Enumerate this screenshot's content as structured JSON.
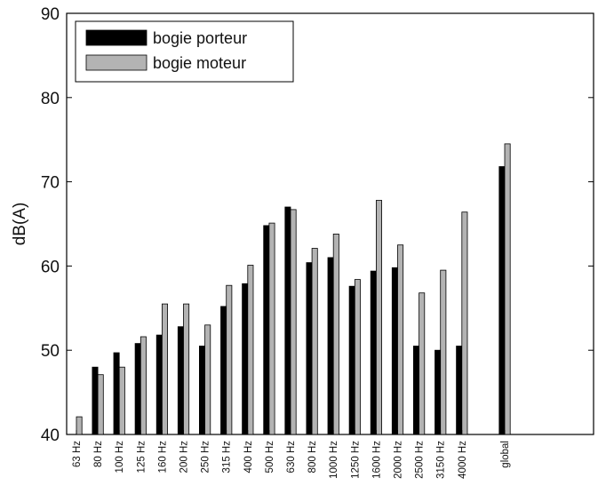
{
  "chart_data": {
    "type": "bar",
    "title": "",
    "xlabel": "",
    "ylabel": "dB(A)",
    "ylim": [
      40,
      90
    ],
    "yticks": [
      40,
      50,
      60,
      70,
      80,
      90
    ],
    "grid": false,
    "legend_position": "top-left",
    "categories": [
      "63 Hz",
      "80 Hz",
      "100 Hz",
      "125 Hz",
      "160 Hz",
      "200 Hz",
      "250 Hz",
      "315 Hz",
      "400 Hz",
      "500 Hz",
      "630 Hz",
      "800 Hz",
      "1000 Hz",
      "1250 Hz",
      "1600 Hz",
      "2000 Hz",
      "2500 Hz",
      "3150 Hz",
      "4000 Hz",
      "",
      "global"
    ],
    "series": [
      {
        "name": "bogie porteur",
        "color": "#000000",
        "values": [
          null,
          48.0,
          49.7,
          50.8,
          51.8,
          52.8,
          50.5,
          55.2,
          57.9,
          64.8,
          67.0,
          60.4,
          61.0,
          57.6,
          59.4,
          59.8,
          50.5,
          50.0,
          50.5,
          null,
          71.8
        ]
      },
      {
        "name": "bogie moteur",
        "color": "#b3b3b3",
        "values": [
          42.1,
          47.1,
          48.0,
          51.6,
          55.5,
          55.5,
          53.0,
          57.7,
          60.1,
          65.1,
          66.7,
          62.1,
          63.8,
          58.4,
          67.8,
          62.5,
          56.8,
          59.5,
          66.4,
          null,
          74.5
        ]
      }
    ]
  }
}
